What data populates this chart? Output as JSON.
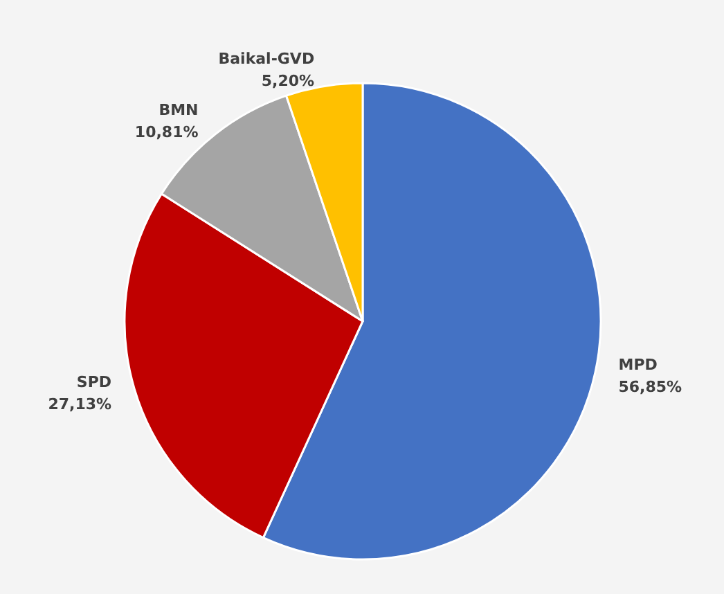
{
  "chart_data": {
    "type": "pie",
    "categories": [
      "MPD",
      "SPD",
      "BMN",
      "Baikal-GVD"
    ],
    "values": [
      56.85,
      27.13,
      10.81,
      5.2
    ],
    "value_labels": [
      "56,85%",
      "27,13%",
      "10,81%",
      "5,20%"
    ],
    "colors": [
      "#4472c4",
      "#c00000",
      "#a5a5a5",
      "#ffc000"
    ],
    "legend": false
  }
}
